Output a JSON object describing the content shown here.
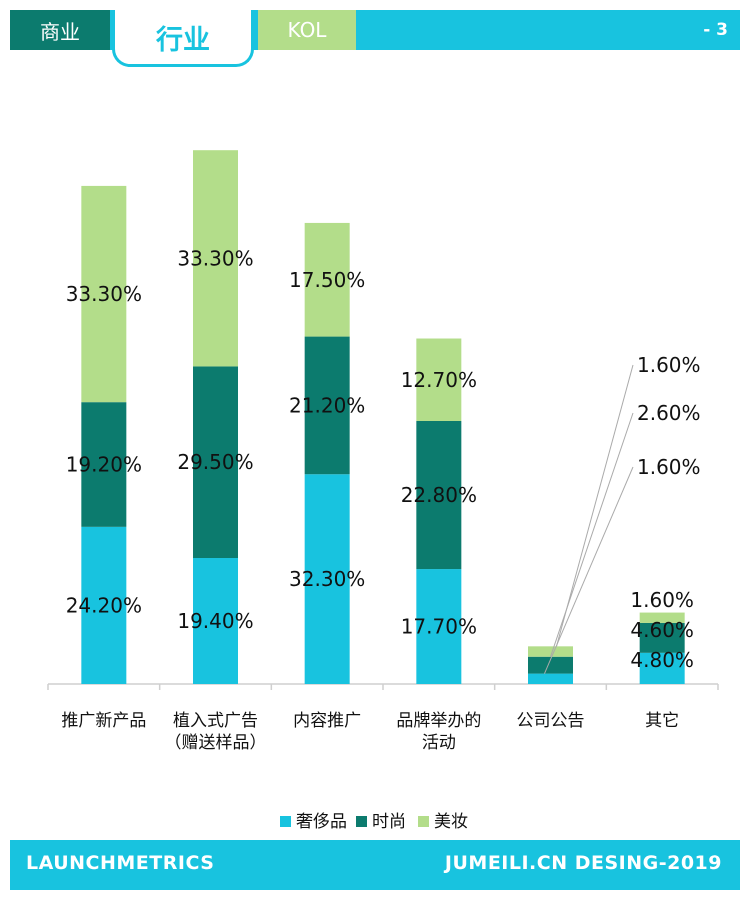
{
  "tabs": [
    {
      "label": "商业"
    },
    {
      "label": "行业"
    },
    {
      "label": "KOL"
    }
  ],
  "page_number": "- 3",
  "footer": {
    "left": "LAUNCHMETRICS",
    "right": "JUMEILI.CN DESING-2019"
  },
  "colors": {
    "frame": "#18c3df",
    "luxury": "#18c3df",
    "fashion": "#0c7b6e",
    "beauty": "#b3dd8a"
  },
  "chart_data": {
    "type": "bar",
    "stacked": true,
    "categories": [
      [
        "推广新产品"
      ],
      [
        "植入式广告",
        "（赠送样品）"
      ],
      [
        "内容推广"
      ],
      [
        "品牌举办的",
        "活动"
      ],
      [
        "公司公告"
      ],
      [
        "其它"
      ]
    ],
    "series": [
      {
        "name": "奢侈品",
        "values": [
          24.2,
          19.4,
          32.3,
          17.7,
          1.6,
          4.8
        ],
        "labels": [
          "24.20%",
          "19.40%",
          "32.30%",
          "17.70%",
          "1.60%",
          "4.80%"
        ]
      },
      {
        "name": "时尚",
        "values": [
          19.2,
          29.5,
          21.2,
          22.8,
          2.6,
          4.6
        ],
        "labels": [
          "19.20%",
          "29.50%",
          "21.20%",
          "22.80%",
          "2.60%",
          "4.60%"
        ]
      },
      {
        "name": "美妆",
        "values": [
          33.3,
          33.3,
          17.5,
          12.7,
          1.6,
          1.6
        ],
        "labels": [
          "33.30%",
          "33.30%",
          "17.50%",
          "12.70%",
          "1.60%",
          "1.60%"
        ]
      }
    ],
    "ylim": [
      0,
      83
    ],
    "legend_position": "bottom"
  }
}
